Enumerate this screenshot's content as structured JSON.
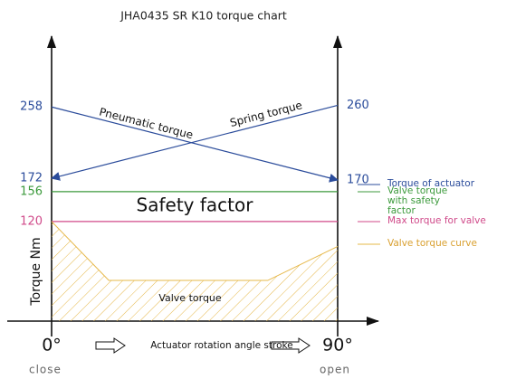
{
  "chart_data": {
    "type": "line",
    "title": "JHA0435 SR K10 torque chart",
    "ylabel": "Torque Nm",
    "xlabel": "Actuator rotation angle stroke",
    "xlim": [
      0,
      90
    ],
    "xticks": [
      {
        "value": 0,
        "label": "0°"
      },
      {
        "value": 90,
        "label": "90°"
      }
    ],
    "xtick_sublabels": [
      "close",
      "open"
    ],
    "ylim": [
      0,
      340
    ],
    "yticks": [
      120,
      156,
      172,
      258
    ],
    "y2lim": [
      0,
      340
    ],
    "y2ticks": [
      170,
      260
    ],
    "series": [
      {
        "name": "Torque of actuator",
        "label": "Pneumatic torque",
        "color": "#2b4c9b",
        "x": [
          0,
          90
        ],
        "values": [
          258,
          170
        ]
      },
      {
        "label": "Spring torque",
        "color": "#2b4c9b",
        "x": [
          0,
          90
        ],
        "values": [
          172,
          260
        ],
        "axis": "y2"
      },
      {
        "name": "Valve torque with safety factor",
        "label": "Safety factor",
        "color": "#3c9a3c",
        "x": [
          0,
          90
        ],
        "values": [
          156,
          156
        ]
      },
      {
        "name": "Max torque for valve",
        "color": "#d04a8a",
        "x": [
          0,
          90
        ],
        "values": [
          120,
          120
        ]
      },
      {
        "name": "Valve torque  curve",
        "label": "Valve torque",
        "color": "#e6b84a",
        "x": [
          0,
          18,
          68,
          90
        ],
        "values": [
          120,
          49,
          49,
          90
        ]
      }
    ]
  }
}
